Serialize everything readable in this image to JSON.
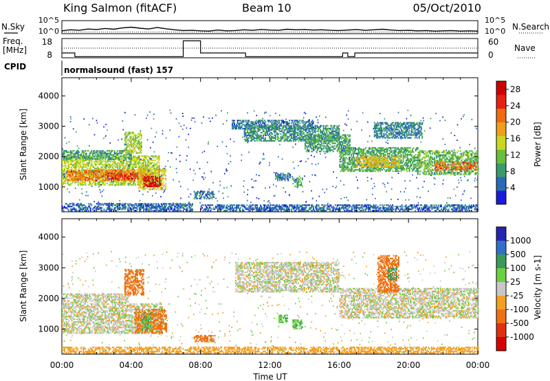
{
  "header": {
    "station": "King Salmon (fitACF)",
    "beam": "Beam 10",
    "date": "05/Oct/2010"
  },
  "strip_labels": {
    "nsky": "N.Sky",
    "nsearch": "N.Search",
    "freq_line1": "Freq.",
    "freq_line2": "[MHz]",
    "nave": "Nave",
    "cpid": "CPID",
    "cpid_value": "normalsound (fast) 157",
    "noise_left_ticks": [
      "10^5",
      "10^0"
    ],
    "noise_right_ticks": [
      "10^5",
      "10^0"
    ],
    "freq_ticks": [
      "18",
      "8"
    ],
    "nave_ticks": [
      "60",
      "0"
    ]
  },
  "colors": {
    "power": [
      "#1a1adb",
      "#2a6ab8",
      "#3a9a6a",
      "#6ac03a",
      "#c8d820",
      "#f0a018",
      "#f06a10",
      "#e82010",
      "#cc0000"
    ],
    "velocity": [
      "#2424b4",
      "#3070c8",
      "#3a9a5a",
      "#6ad040",
      "#c8c8c8",
      "#f4a020",
      "#f07010",
      "#e03010",
      "#d80000"
    ]
  },
  "chart_data": [
    {
      "type": "line",
      "panel": "noise",
      "x_unit": "hours UT",
      "xlim": [
        0,
        24
      ],
      "series": [
        {
          "name": "N.Sky",
          "x": [
            0,
            0.5,
            1,
            1.5,
            2,
            2.5,
            3,
            3.5,
            4,
            4.5,
            5,
            5.5,
            6,
            6.5,
            7,
            7.5,
            8,
            8.5,
            9,
            9.5,
            10,
            10.5,
            11,
            11.5,
            12,
            12.5,
            13,
            13.5,
            14,
            14.5,
            15,
            15.5,
            16,
            16.5,
            17,
            17.5,
            18,
            18.5,
            19,
            19.5,
            20,
            20.5,
            21,
            21.5,
            22,
            22.5,
            23,
            23.5,
            24
          ],
          "y": [
            1.1,
            1.5,
            1.3,
            1.8,
            1.6,
            2.0,
            1.7,
            2.2,
            2.5,
            2.1,
            1.8,
            2.4,
            1.9,
            1.5,
            1.2,
            1.3,
            1.1,
            1.0,
            1.4,
            1.1,
            1.2,
            1.5,
            1.3,
            1.6,
            1.4,
            1.3,
            1.7,
            1.5,
            1.6,
            1.4,
            1.5,
            1.3,
            1.2,
            1.4,
            1.6,
            1.3,
            1.5,
            1.7,
            1.4,
            1.2,
            1.3,
            1.1,
            1.2,
            1.0,
            1.1,
            1.2,
            1.0,
            1.1,
            1.0
          ]
        },
        {
          "name": "N.Search",
          "x": [
            0,
            24
          ],
          "y": [
            0.6,
            0.6
          ]
        }
      ]
    },
    {
      "type": "line",
      "panel": "freq-nave",
      "x_unit": "hours UT",
      "series": [
        {
          "name": "Freq.",
          "x": [
            0,
            0.75,
            0.75,
            7.0,
            7.0,
            8.0,
            8.0,
            10.6,
            10.6,
            16.2,
            16.2,
            16.5,
            16.5,
            16.9,
            16.9,
            20.9,
            20.9,
            24
          ],
          "y": [
            10.5,
            10.5,
            8.6,
            8.6,
            16.8,
            16.8,
            10.5,
            10.5,
            8.6,
            8.6,
            10.5,
            10.5,
            8.6,
            8.6,
            10.5,
            10.5,
            10.5,
            10.5
          ],
          "ylim": [
            8,
            18
          ]
        },
        {
          "name": "Nave",
          "x": [
            0,
            24
          ],
          "y": [
            30,
            30
          ],
          "ylim": [
            0,
            60
          ]
        }
      ]
    },
    {
      "type": "heatmap",
      "panel": "power",
      "xlabel": "",
      "ylabel": "Slant Range [km]",
      "xlim": [
        0,
        24
      ],
      "ylim": [
        180,
        4600
      ],
      "yticks": [
        1000,
        2000,
        3000,
        4000
      ],
      "colorbar_label": "Power [dB]",
      "colorbar_ticks": [
        4,
        8,
        12,
        16,
        20,
        24,
        28
      ],
      "colorbar_range": [
        0,
        30
      ],
      "regions": [
        {
          "t0": 0.0,
          "t1": 5.6,
          "r0": 1050,
          "r1": 2000,
          "v": 14
        },
        {
          "t0": 0.3,
          "t1": 4.2,
          "r0": 1200,
          "r1": 1550,
          "v": 21
        },
        {
          "t0": 2.5,
          "t1": 5.2,
          "r0": 1250,
          "r1": 1450,
          "v": 25
        },
        {
          "t0": 0.0,
          "t1": 4.0,
          "r0": 1900,
          "r1": 2200,
          "v": 9
        },
        {
          "t0": 3.6,
          "t1": 4.6,
          "r0": 2100,
          "r1": 2800,
          "v": 14
        },
        {
          "t0": 4.4,
          "t1": 6.0,
          "r0": 900,
          "r1": 1600,
          "v": 16
        },
        {
          "t0": 4.7,
          "t1": 5.7,
          "r0": 1000,
          "r1": 1350,
          "v": 27
        },
        {
          "t0": 0.0,
          "t1": 7.5,
          "r0": 200,
          "r1": 450,
          "v": 5
        },
        {
          "t0": 7.6,
          "t1": 8.8,
          "r0": 600,
          "r1": 850,
          "v": 6
        },
        {
          "t0": 9.8,
          "t1": 14.5,
          "r0": 2900,
          "r1": 3200,
          "v": 6
        },
        {
          "t0": 10.5,
          "t1": 16.0,
          "r0": 2500,
          "r1": 3000,
          "v": 8
        },
        {
          "t0": 12.3,
          "t1": 13.2,
          "r0": 1200,
          "r1": 1450,
          "v": 6
        },
        {
          "t0": 13.3,
          "t1": 13.9,
          "r0": 1000,
          "r1": 1300,
          "v": 9
        },
        {
          "t0": 14.0,
          "t1": 16.6,
          "r0": 2150,
          "r1": 2700,
          "v": 9
        },
        {
          "t0": 16.0,
          "t1": 20.5,
          "r0": 1500,
          "r1": 2300,
          "v": 10
        },
        {
          "t0": 17.0,
          "t1": 19.5,
          "r0": 1650,
          "r1": 2000,
          "v": 17
        },
        {
          "t0": 18.0,
          "t1": 20.8,
          "r0": 2600,
          "r1": 3100,
          "v": 7
        },
        {
          "t0": 20.5,
          "t1": 24.0,
          "r0": 1400,
          "r1": 2200,
          "v": 11
        },
        {
          "t0": 21.5,
          "t1": 24.0,
          "r0": 1550,
          "r1": 1800,
          "v": 22
        },
        {
          "t0": 8.0,
          "t1": 24.0,
          "r0": 200,
          "r1": 420,
          "v": 5
        }
      ]
    },
    {
      "type": "heatmap",
      "panel": "velocity",
      "xlabel": "Time UT",
      "ylabel": "Slant Range [km]",
      "xlim": [
        0,
        24
      ],
      "ylim": [
        180,
        4600
      ],
      "yticks": [
        1000,
        2000,
        3000,
        4000
      ],
      "xticks": [
        "00:00",
        "04:00",
        "08:00",
        "12:00",
        "16:00",
        "20:00",
        "00:00"
      ],
      "colorbar_label": "Velocity [m s-1]",
      "colorbar_ticks": [
        "1000",
        "500",
        "100",
        "25",
        "-25",
        "-100",
        "-500",
        "-1000"
      ],
      "regions": [
        {
          "t0": 0.0,
          "t1": 5.8,
          "r0": 850,
          "r1": 1800,
          "v": 0
        },
        {
          "t0": 0.0,
          "t1": 3.8,
          "r0": 1850,
          "r1": 2150,
          "v": 0
        },
        {
          "t0": 3.6,
          "t1": 4.7,
          "r0": 2100,
          "r1": 2950,
          "v": -300
        },
        {
          "t0": 4.2,
          "t1": 6.0,
          "r0": 850,
          "r1": 1650,
          "v": -200
        },
        {
          "t0": 4.6,
          "t1": 5.1,
          "r0": 950,
          "r1": 1500,
          "v": 90
        },
        {
          "t0": 7.6,
          "t1": 8.8,
          "r0": 580,
          "r1": 800,
          "v": -400
        },
        {
          "t0": 10.0,
          "t1": 16.0,
          "r0": 2200,
          "r1": 3150,
          "v": 0
        },
        {
          "t0": 12.5,
          "t1": 13.0,
          "r0": 1200,
          "r1": 1450,
          "v": 90
        },
        {
          "t0": 13.3,
          "t1": 13.9,
          "r0": 1000,
          "r1": 1300,
          "v": 90
        },
        {
          "t0": 16.0,
          "t1": 24.0,
          "r0": 1350,
          "r1": 2300,
          "v": 0
        },
        {
          "t0": 18.2,
          "t1": 19.4,
          "r0": 2200,
          "r1": 3400,
          "v": -300
        },
        {
          "t0": 18.8,
          "t1": 19.3,
          "r0": 2600,
          "r1": 3000,
          "v": 400
        },
        {
          "t0": 0.0,
          "t1": 24.0,
          "r0": 200,
          "r1": 400,
          "v": -60
        }
      ]
    }
  ]
}
